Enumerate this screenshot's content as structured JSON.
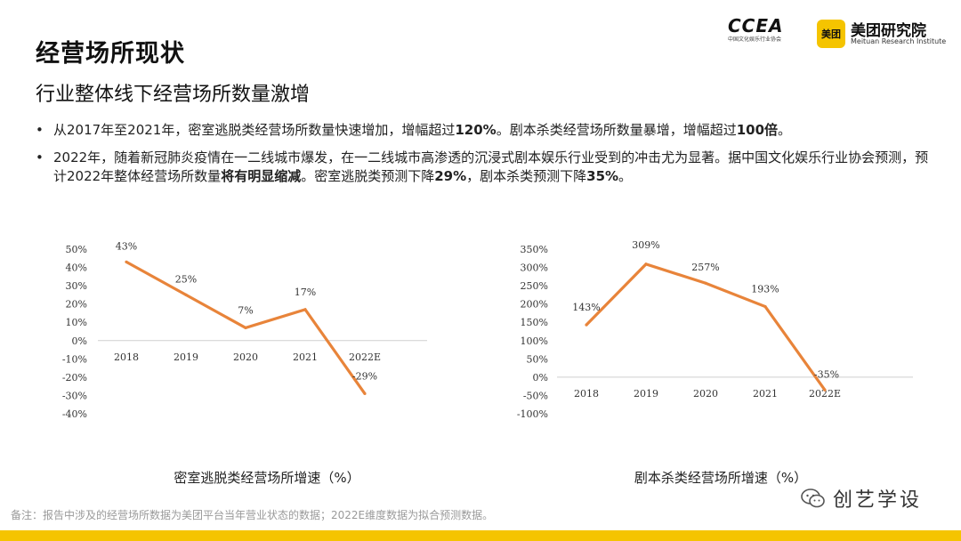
{
  "header": {
    "title": "经营场所现状",
    "subtitle": "行业整体线下经营场所数量激增"
  },
  "logos": {
    "ccea_mark": "CCEA",
    "ccea_small": "中国文化娱乐行业协会",
    "meituan_badge": "美团",
    "meituan_name": "美团研究院",
    "meituan_en": "Meituan Research Institute"
  },
  "bullets": [
    {
      "parts": [
        {
          "t": "从2017年至2021年，密室逃脱类经营场所数量快速增加，增幅超过",
          "b": false
        },
        {
          "t": "120%",
          "b": true
        },
        {
          "t": "。剧本杀类经营场所数量暴增，增幅超过",
          "b": false
        },
        {
          "t": "100",
          "b": true
        },
        {
          "t": "倍",
          "b": true
        },
        {
          "t": "。",
          "b": false
        }
      ]
    },
    {
      "parts": [
        {
          "t": "2022年，随着新冠肺炎疫情在一二线城市爆发，在一二线城市高渗透的沉浸式剧本娱乐行业受到的冲击尤为显著。据中国文化娱乐行业协会预测，预计2022年整体经营场所数量",
          "b": false
        },
        {
          "t": "将有明显缩减",
          "b": true
        },
        {
          "t": "。密室逃脱类预测下降",
          "b": false
        },
        {
          "t": "29%",
          "b": true
        },
        {
          "t": "，剧本杀类预测下降",
          "b": false
        },
        {
          "t": "35%",
          "b": true
        },
        {
          "t": "。",
          "b": false
        }
      ]
    }
  ],
  "chart_data": [
    {
      "type": "line",
      "title": "密室逃脱类经营场所增速（%）",
      "categories": [
        "2018",
        "2019",
        "2020",
        "2021",
        "2022E"
      ],
      "values": [
        43,
        25,
        7,
        17,
        -29
      ],
      "data_labels": [
        "43%",
        "25%",
        "7%",
        "17%",
        "-29%"
      ],
      "ylim": [
        -40,
        50
      ],
      "yticks": [
        "50%",
        "40%",
        "30%",
        "20%",
        "10%",
        "0%",
        "-10%",
        "-20%",
        "-30%",
        "-40%"
      ],
      "ytick_values": [
        50,
        40,
        30,
        20,
        10,
        0,
        -10,
        -20,
        -30,
        -40
      ],
      "grid": false,
      "color": "#e8843a"
    },
    {
      "type": "line",
      "title": "剧本杀类经营场所增速（%）",
      "categories": [
        "2018",
        "2019",
        "2020",
        "2021",
        "2022E"
      ],
      "values": [
        143,
        309,
        257,
        193,
        -35
      ],
      "data_labels": [
        "143%",
        "309%",
        "257%",
        "193%",
        "-35%"
      ],
      "ylim": [
        -100,
        350
      ],
      "yticks": [
        "350%",
        "300%",
        "250%",
        "200%",
        "150%",
        "100%",
        "50%",
        "0%",
        "-50%",
        "-100%"
      ],
      "ytick_values": [
        350,
        300,
        250,
        200,
        150,
        100,
        50,
        0,
        -50,
        -100
      ],
      "grid": false,
      "color": "#e8843a"
    }
  ],
  "footer": {
    "note": "备注：报告中涉及的经营场所数据为美团平台当年营业状态的数据；2022E维度数据为拟合预测数据。",
    "watermark": "创艺学设"
  }
}
